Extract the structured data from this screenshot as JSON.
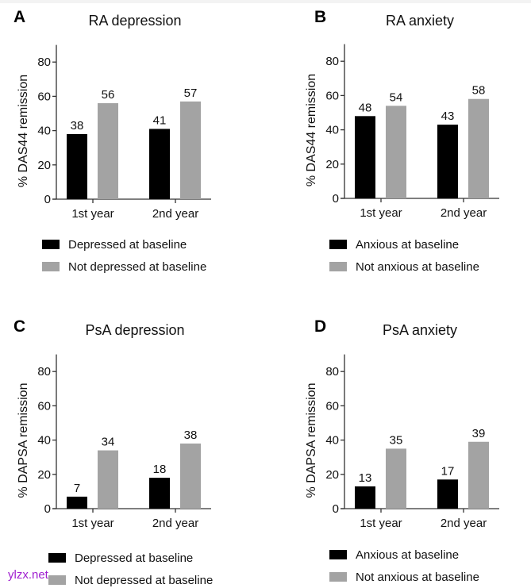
{
  "colors": {
    "series_baseline": "#000000",
    "series_not_baseline": "#a3a3a3",
    "watermark": "#a020d0"
  },
  "watermark": "ylzx.net",
  "chart_data": [
    {
      "type": "bar",
      "panel": "A",
      "title": "RA depression",
      "xlabel": "",
      "ylabel": "% DAS44 remission",
      "ylim": [
        0,
        90
      ],
      "yticks": [
        0,
        20,
        40,
        60,
        80
      ],
      "categories": [
        "1st year",
        "2nd year"
      ],
      "series": [
        {
          "name": "Depressed at baseline",
          "values": [
            38,
            41
          ],
          "color": "#000000"
        },
        {
          "name": "Not depressed at baseline",
          "values": [
            56,
            57
          ],
          "color": "#a3a3a3"
        }
      ],
      "legend_position": "bottom",
      "grid": false
    },
    {
      "type": "bar",
      "panel": "B",
      "title": "RA anxiety",
      "xlabel": "",
      "ylabel": "% DAS44 remission",
      "ylim": [
        0,
        90
      ],
      "yticks": [
        0,
        20,
        40,
        60,
        80
      ],
      "categories": [
        "1st year",
        "2nd year"
      ],
      "series": [
        {
          "name": "Anxious at baseline",
          "values": [
            48,
            43
          ],
          "color": "#000000"
        },
        {
          "name": "Not anxious at baseline",
          "values": [
            54,
            58
          ],
          "color": "#a3a3a3"
        }
      ],
      "legend_position": "bottom",
      "grid": false
    },
    {
      "type": "bar",
      "panel": "C",
      "title": "PsA depression",
      "xlabel": "",
      "ylabel": "% DAPSA remission",
      "ylim": [
        0,
        90
      ],
      "yticks": [
        0,
        20,
        40,
        60,
        80
      ],
      "categories": [
        "1st year",
        "2nd year"
      ],
      "series": [
        {
          "name": "Depressed at baseline",
          "values": [
            7,
            18
          ],
          "color": "#000000"
        },
        {
          "name": "Not depressed at baseline",
          "values": [
            34,
            38
          ],
          "color": "#a3a3a3"
        }
      ],
      "legend_position": "bottom",
      "grid": false
    },
    {
      "type": "bar",
      "panel": "D",
      "title": "PsA anxiety",
      "xlabel": "",
      "ylabel": "% DAPSA remission",
      "ylim": [
        0,
        90
      ],
      "yticks": [
        0,
        20,
        40,
        60,
        80
      ],
      "categories": [
        "1st year",
        "2nd year"
      ],
      "series": [
        {
          "name": "Anxious at baseline",
          "values": [
            13,
            17
          ],
          "color": "#000000"
        },
        {
          "name": "Not anxious at baseline",
          "values": [
            35,
            39
          ],
          "color": "#a3a3a3"
        }
      ],
      "legend_position": "bottom",
      "grid": false
    }
  ]
}
